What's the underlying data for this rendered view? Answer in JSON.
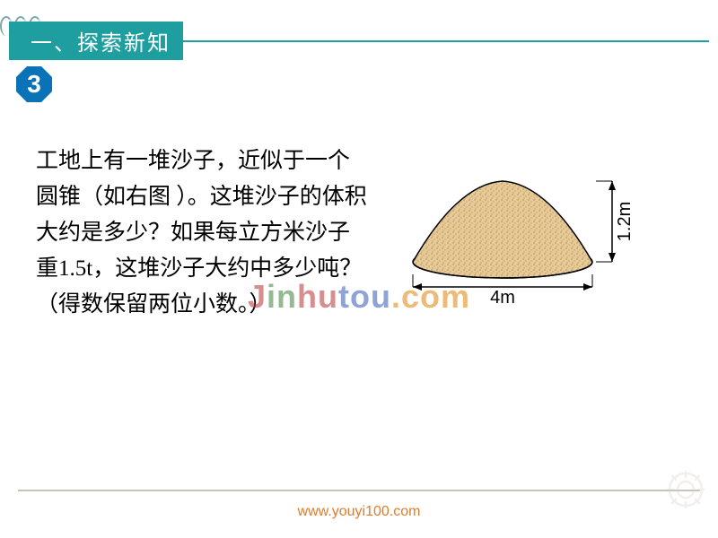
{
  "section": {
    "title": "一、探索新知",
    "tab_bg": "#1f9ea0",
    "tab_color": "#ffffff"
  },
  "badge": {
    "number": "3",
    "bg": "#0a73b7",
    "color": "#ffffff"
  },
  "problem": {
    "text": "工地上有一堆沙子，近似于一个圆锥（如右图 ）。这堆沙子的体积大约是多少？如果每立方米沙子重1.5t，这堆沙子大约中多少吨？（得数保留两位小数。）"
  },
  "figure": {
    "type": "infographic",
    "shape": "cone-pile",
    "width_label": "4m",
    "height_label": "1.2m",
    "sand_fill": "#e8ca96",
    "sand_stroke": "#000000",
    "speckle_color": "#8a6a3e",
    "arrow_color": "#000000",
    "label_fontsize": 20
  },
  "watermark": {
    "parts": [
      {
        "text": "J",
        "cls": "wm-j"
      },
      {
        "text": "in",
        "cls": "wm-in"
      },
      {
        "text": "hu",
        "cls": "wm-hu"
      },
      {
        "text": "tou",
        "cls": "wm-tou"
      },
      {
        "text": ".com",
        "cls": "wm-com"
      }
    ]
  },
  "footer": {
    "url": "www.youyi100.com",
    "url_color": "#e07b2a",
    "line_color": "#c9c4bb",
    "gear_color": "#d7d2c8"
  }
}
